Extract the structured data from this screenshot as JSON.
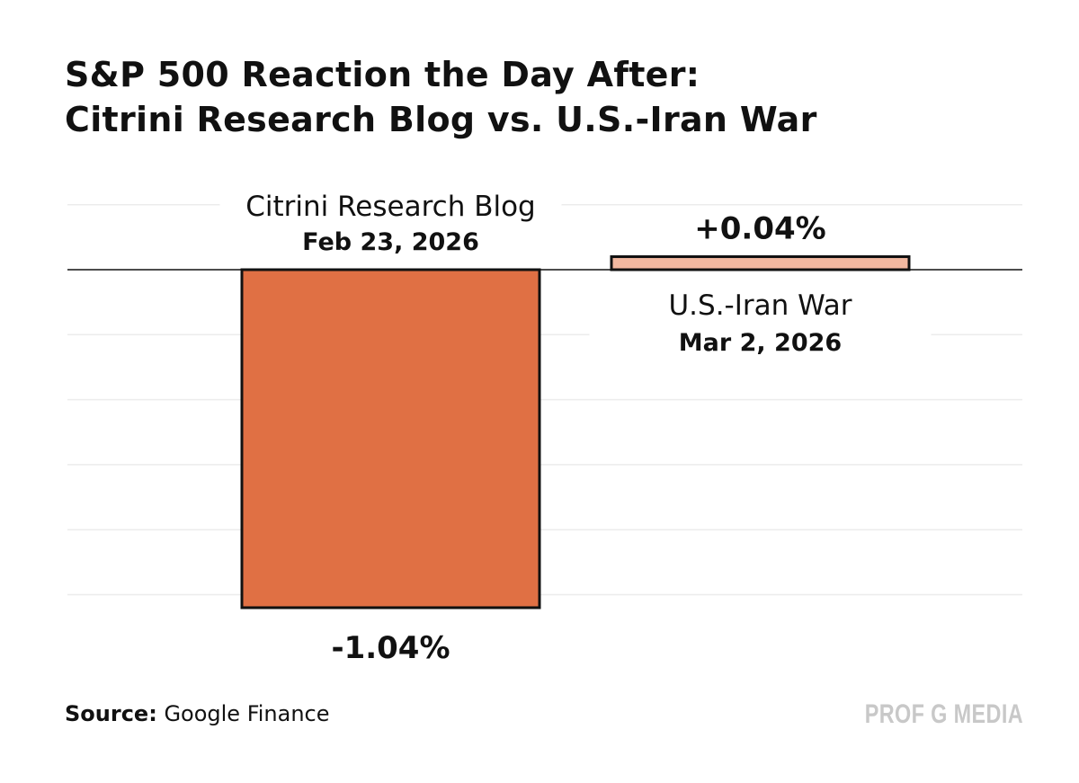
{
  "chart_data": {
    "type": "bar",
    "title": "S&P 500 Reaction the Day After: Citrini Research Blog vs. U.S.-Iran War",
    "title_lines": [
      "S&P 500 Reaction the Day After:",
      "Citrini Research Blog vs. U.S.-Iran War"
    ],
    "categories": [
      "Citrini Research Blog",
      "U.S.-Iran War"
    ],
    "dates": [
      "Feb 23, 2026",
      "Mar 2, 2026"
    ],
    "values": [
      -1.04,
      0.04
    ],
    "value_labels": [
      "-1.04%",
      "+0.04%"
    ],
    "colors": [
      "#E07044",
      "#F2B8A0"
    ],
    "unit": "%",
    "ylim": [
      -1.04,
      0.2
    ],
    "gridlines": [
      0.2,
      0,
      -0.2,
      -0.4,
      -0.6,
      -0.8,
      -1.0
    ],
    "grid": true,
    "axis_ticks_shown": false,
    "source_label": "Source:",
    "source": "Google Finance",
    "watermark": "PROF G MEDIA"
  }
}
